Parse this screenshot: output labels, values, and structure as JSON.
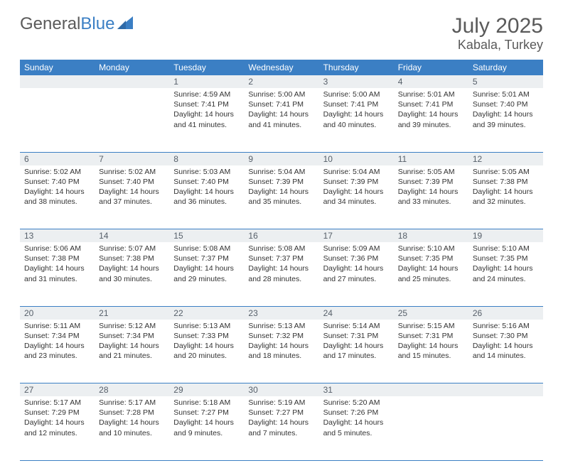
{
  "logo": {
    "word1": "General",
    "word2": "Blue"
  },
  "title": "July 2025",
  "location": "Kabala, Turkey",
  "colors": {
    "header_bg": "#3b7fc4",
    "header_text": "#ffffff",
    "daynum_bg": "#eceff1",
    "daynum_text": "#57606a",
    "cell_border": "#3b7fc4",
    "body_text": "#333333",
    "logo_gray": "#5a5a5a",
    "logo_blue": "#3b7fc4"
  },
  "weekdays": [
    "Sunday",
    "Monday",
    "Tuesday",
    "Wednesday",
    "Thursday",
    "Friday",
    "Saturday"
  ],
  "weeks": [
    [
      null,
      null,
      {
        "n": "1",
        "sr": "4:59 AM",
        "ss": "7:41 PM",
        "dl": "14 hours and 41 minutes."
      },
      {
        "n": "2",
        "sr": "5:00 AM",
        "ss": "7:41 PM",
        "dl": "14 hours and 41 minutes."
      },
      {
        "n": "3",
        "sr": "5:00 AM",
        "ss": "7:41 PM",
        "dl": "14 hours and 40 minutes."
      },
      {
        "n": "4",
        "sr": "5:01 AM",
        "ss": "7:41 PM",
        "dl": "14 hours and 39 minutes."
      },
      {
        "n": "5",
        "sr": "5:01 AM",
        "ss": "7:40 PM",
        "dl": "14 hours and 39 minutes."
      }
    ],
    [
      {
        "n": "6",
        "sr": "5:02 AM",
        "ss": "7:40 PM",
        "dl": "14 hours and 38 minutes."
      },
      {
        "n": "7",
        "sr": "5:02 AM",
        "ss": "7:40 PM",
        "dl": "14 hours and 37 minutes."
      },
      {
        "n": "8",
        "sr": "5:03 AM",
        "ss": "7:40 PM",
        "dl": "14 hours and 36 minutes."
      },
      {
        "n": "9",
        "sr": "5:04 AM",
        "ss": "7:39 PM",
        "dl": "14 hours and 35 minutes."
      },
      {
        "n": "10",
        "sr": "5:04 AM",
        "ss": "7:39 PM",
        "dl": "14 hours and 34 minutes."
      },
      {
        "n": "11",
        "sr": "5:05 AM",
        "ss": "7:39 PM",
        "dl": "14 hours and 33 minutes."
      },
      {
        "n": "12",
        "sr": "5:05 AM",
        "ss": "7:38 PM",
        "dl": "14 hours and 32 minutes."
      }
    ],
    [
      {
        "n": "13",
        "sr": "5:06 AM",
        "ss": "7:38 PM",
        "dl": "14 hours and 31 minutes."
      },
      {
        "n": "14",
        "sr": "5:07 AM",
        "ss": "7:38 PM",
        "dl": "14 hours and 30 minutes."
      },
      {
        "n": "15",
        "sr": "5:08 AM",
        "ss": "7:37 PM",
        "dl": "14 hours and 29 minutes."
      },
      {
        "n": "16",
        "sr": "5:08 AM",
        "ss": "7:37 PM",
        "dl": "14 hours and 28 minutes."
      },
      {
        "n": "17",
        "sr": "5:09 AM",
        "ss": "7:36 PM",
        "dl": "14 hours and 27 minutes."
      },
      {
        "n": "18",
        "sr": "5:10 AM",
        "ss": "7:35 PM",
        "dl": "14 hours and 25 minutes."
      },
      {
        "n": "19",
        "sr": "5:10 AM",
        "ss": "7:35 PM",
        "dl": "14 hours and 24 minutes."
      }
    ],
    [
      {
        "n": "20",
        "sr": "5:11 AM",
        "ss": "7:34 PM",
        "dl": "14 hours and 23 minutes."
      },
      {
        "n": "21",
        "sr": "5:12 AM",
        "ss": "7:34 PM",
        "dl": "14 hours and 21 minutes."
      },
      {
        "n": "22",
        "sr": "5:13 AM",
        "ss": "7:33 PM",
        "dl": "14 hours and 20 minutes."
      },
      {
        "n": "23",
        "sr": "5:13 AM",
        "ss": "7:32 PM",
        "dl": "14 hours and 18 minutes."
      },
      {
        "n": "24",
        "sr": "5:14 AM",
        "ss": "7:31 PM",
        "dl": "14 hours and 17 minutes."
      },
      {
        "n": "25",
        "sr": "5:15 AM",
        "ss": "7:31 PM",
        "dl": "14 hours and 15 minutes."
      },
      {
        "n": "26",
        "sr": "5:16 AM",
        "ss": "7:30 PM",
        "dl": "14 hours and 14 minutes."
      }
    ],
    [
      {
        "n": "27",
        "sr": "5:17 AM",
        "ss": "7:29 PM",
        "dl": "14 hours and 12 minutes."
      },
      {
        "n": "28",
        "sr": "5:17 AM",
        "ss": "7:28 PM",
        "dl": "14 hours and 10 minutes."
      },
      {
        "n": "29",
        "sr": "5:18 AM",
        "ss": "7:27 PM",
        "dl": "14 hours and 9 minutes."
      },
      {
        "n": "30",
        "sr": "5:19 AM",
        "ss": "7:27 PM",
        "dl": "14 hours and 7 minutes."
      },
      {
        "n": "31",
        "sr": "5:20 AM",
        "ss": "7:26 PM",
        "dl": "14 hours and 5 minutes."
      },
      null,
      null
    ]
  ],
  "labels": {
    "sunrise": "Sunrise: ",
    "sunset": "Sunset: ",
    "daylight": "Daylight: "
  }
}
